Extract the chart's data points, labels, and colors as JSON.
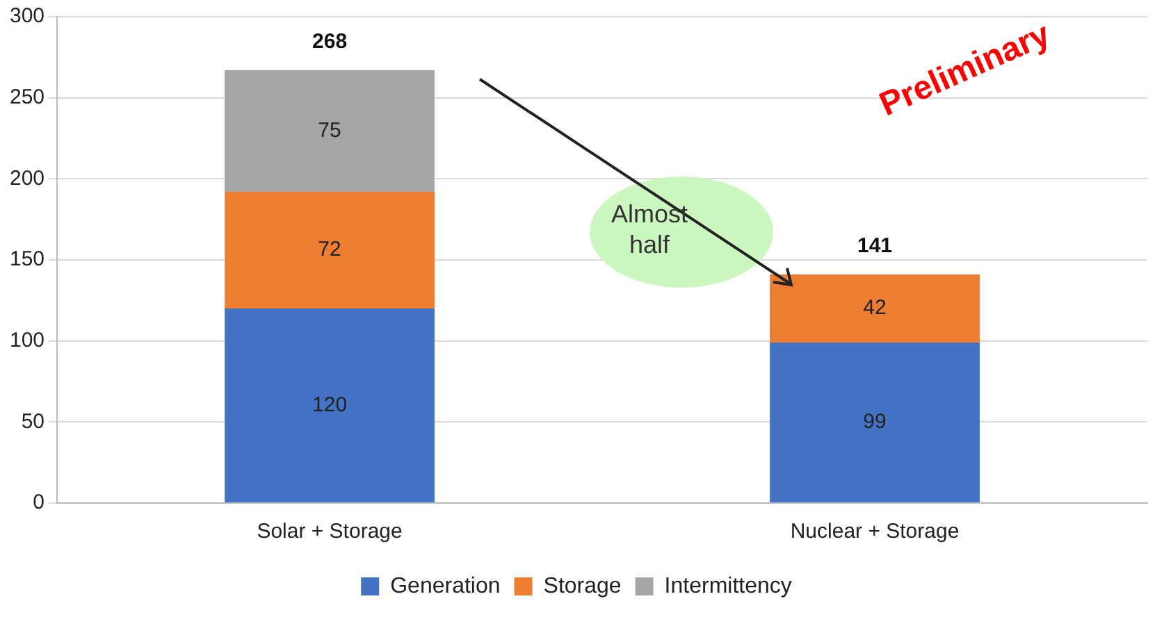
{
  "chart_data": {
    "type": "bar",
    "stacked": true,
    "categories": [
      "Solar + Storage",
      "Nuclear + Storage"
    ],
    "series": [
      {
        "name": "Generation",
        "color": "#4472c4",
        "values": [
          120,
          99
        ]
      },
      {
        "name": "Storage",
        "color": "#ed7d31",
        "values": [
          72,
          42
        ]
      },
      {
        "name": "Intermittency",
        "color": "#a5a5a5",
        "values": [
          75,
          null
        ]
      }
    ],
    "totals": [
      "268",
      "141"
    ],
    "data_labels": true,
    "ylim": [
      0,
      300
    ],
    "yticks": [
      0,
      50,
      100,
      150,
      200,
      250,
      300
    ],
    "grid": "y",
    "legend": "bottom",
    "annotations": [
      "Almost half",
      "Preliminary"
    ]
  }
}
